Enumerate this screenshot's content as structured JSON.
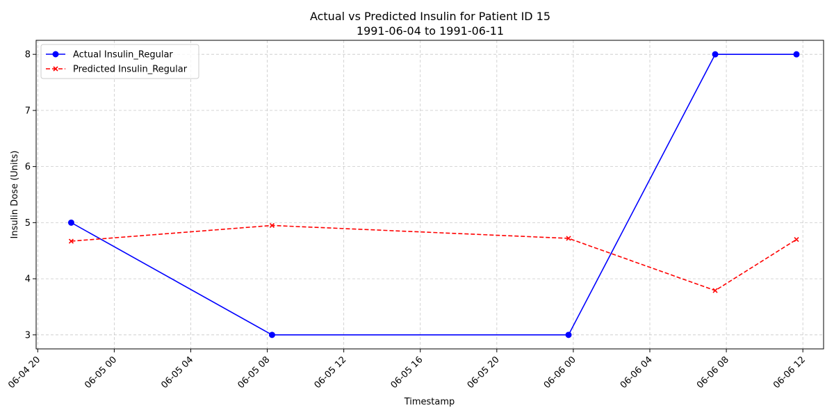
{
  "chart_data": {
    "type": "line",
    "title": "Actual vs Predicted Insulin for Patient ID 15",
    "subtitle": "1991-06-04 to 1991-06-11",
    "xlabel": "Timestamp",
    "ylabel": "Insulin Dose (Units)",
    "x_axis_type": "datetime",
    "xlim": [
      "1991-06-04 19:55",
      "1991-06-06 13:05"
    ],
    "ylim": [
      2.75,
      8.25
    ],
    "grid": true,
    "legend_position": "top-left",
    "x_tick_labels": [
      "06-04 20",
      "06-05 00",
      "06-05 04",
      "06-05 08",
      "06-05 12",
      "06-05 16",
      "06-05 20",
      "06-06 00",
      "06-06 04",
      "06-06 08",
      "06-06 12"
    ],
    "x_tick_values": [
      "1991-06-04 20:00",
      "1991-06-05 00:00",
      "1991-06-05 04:00",
      "1991-06-05 08:00",
      "1991-06-05 12:00",
      "1991-06-05 16:00",
      "1991-06-05 20:00",
      "1991-06-06 00:00",
      "1991-06-06 04:00",
      "1991-06-06 08:00",
      "1991-06-06 12:00"
    ],
    "y_ticks": [
      3,
      4,
      5,
      6,
      7,
      8
    ],
    "x": [
      "1991-06-04 21:45",
      "1991-06-05 08:15",
      "1991-06-05 23:45",
      "1991-06-06 07:25",
      "1991-06-06 11:40"
    ],
    "series": [
      {
        "name": "Actual Insulin_Regular",
        "values": [
          5,
          3,
          3,
          8,
          8
        ],
        "color": "#0000ff",
        "line_style": "solid",
        "marker": "circle"
      },
      {
        "name": "Predicted Insulin_Regular",
        "values": [
          4.67,
          4.95,
          4.72,
          3.79,
          4.7
        ],
        "color": "#ff0000",
        "line_style": "dashed",
        "marker": "x"
      }
    ]
  }
}
